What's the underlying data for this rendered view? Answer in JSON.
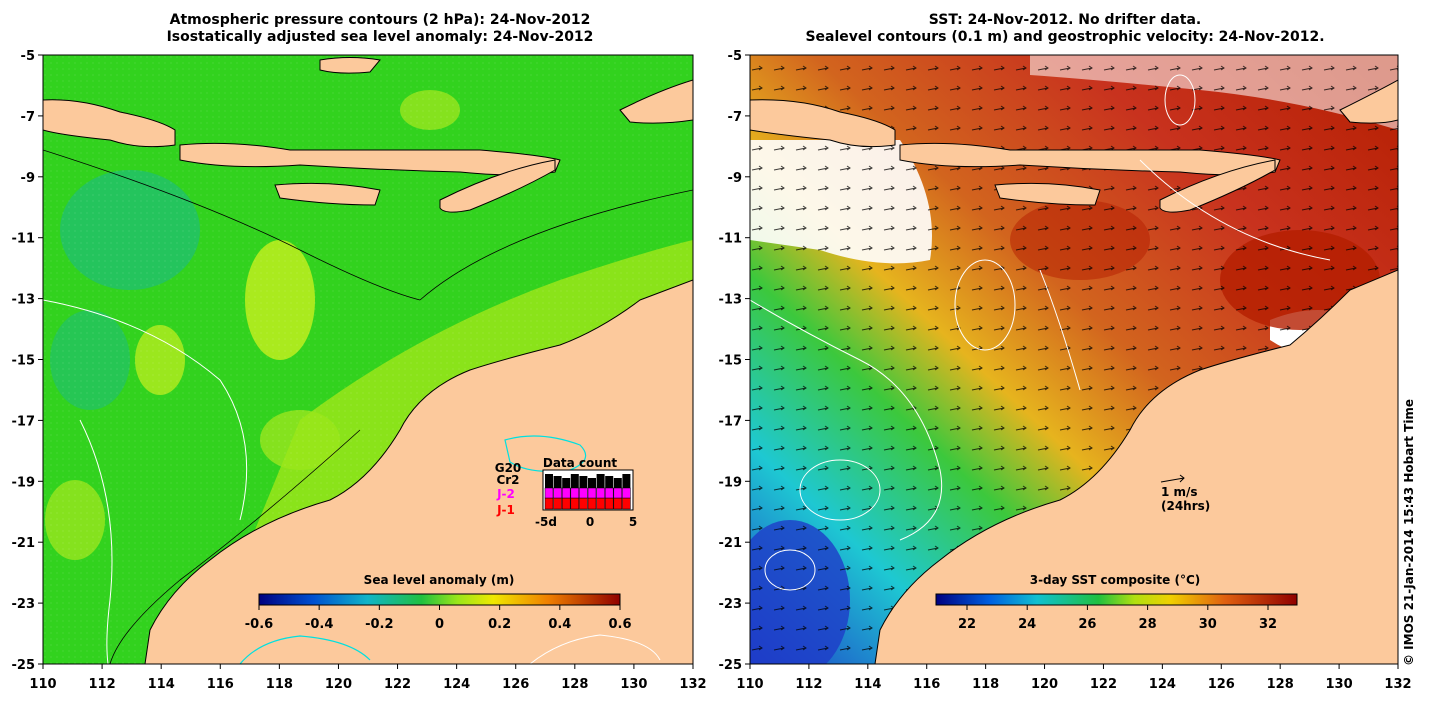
{
  "left_panel": {
    "title_line1": "Atmospheric pressure contours (2 hPa): 24-Nov-2012",
    "title_line2": "Isostatically adjusted sea level anomaly: 24-Nov-2012",
    "colorbar_label": "Sea level anomaly (m)",
    "colorbar_ticks": [
      "-0.6",
      "-0.4",
      "-0.2",
      "0",
      "0.2",
      "0.4",
      "0.6"
    ],
    "inset": {
      "title": "Data count",
      "labels": [
        "G20",
        "Cr2",
        "J-2",
        "J-1"
      ],
      "label_colors": [
        "#000000",
        "#000000",
        "#ff00ff",
        "#ff0000"
      ],
      "x_ticks": [
        "-5d",
        "0",
        "5"
      ]
    }
  },
  "right_panel": {
    "title_line1": "SST: 24-Nov-2012. No drifter data.",
    "title_line2": "Sealevel contours (0.1 m) and geostrophic velocity: 24-Nov-2012.",
    "colorbar_label": "3-day SST composite (°C)",
    "colorbar_ticks": [
      "22",
      "24",
      "26",
      "28",
      "30",
      "32"
    ],
    "velocity_key": [
      "1 m/s",
      "(24hrs)"
    ]
  },
  "axes": {
    "x_ticks": [
      "110",
      "112",
      "114",
      "116",
      "118",
      "120",
      "122",
      "124",
      "126",
      "128",
      "130",
      "132"
    ],
    "y_ticks": [
      "-5",
      "-7",
      "-9",
      "-11",
      "-13",
      "-15",
      "-17",
      "-19",
      "-21",
      "-23",
      "-25"
    ]
  },
  "footer": "© IMOS 21-Jan-2014 15:43 Hobart Time",
  "colors": {
    "land": "#fcc99c",
    "ocean_green": "#32d21e",
    "ocean_light": "#8ee618",
    "sst_warm": "#d2501e",
    "sst_hot": "#b41e00",
    "sst_cool": "#1eb4c8",
    "sst_cold": "#1e50c8"
  }
}
